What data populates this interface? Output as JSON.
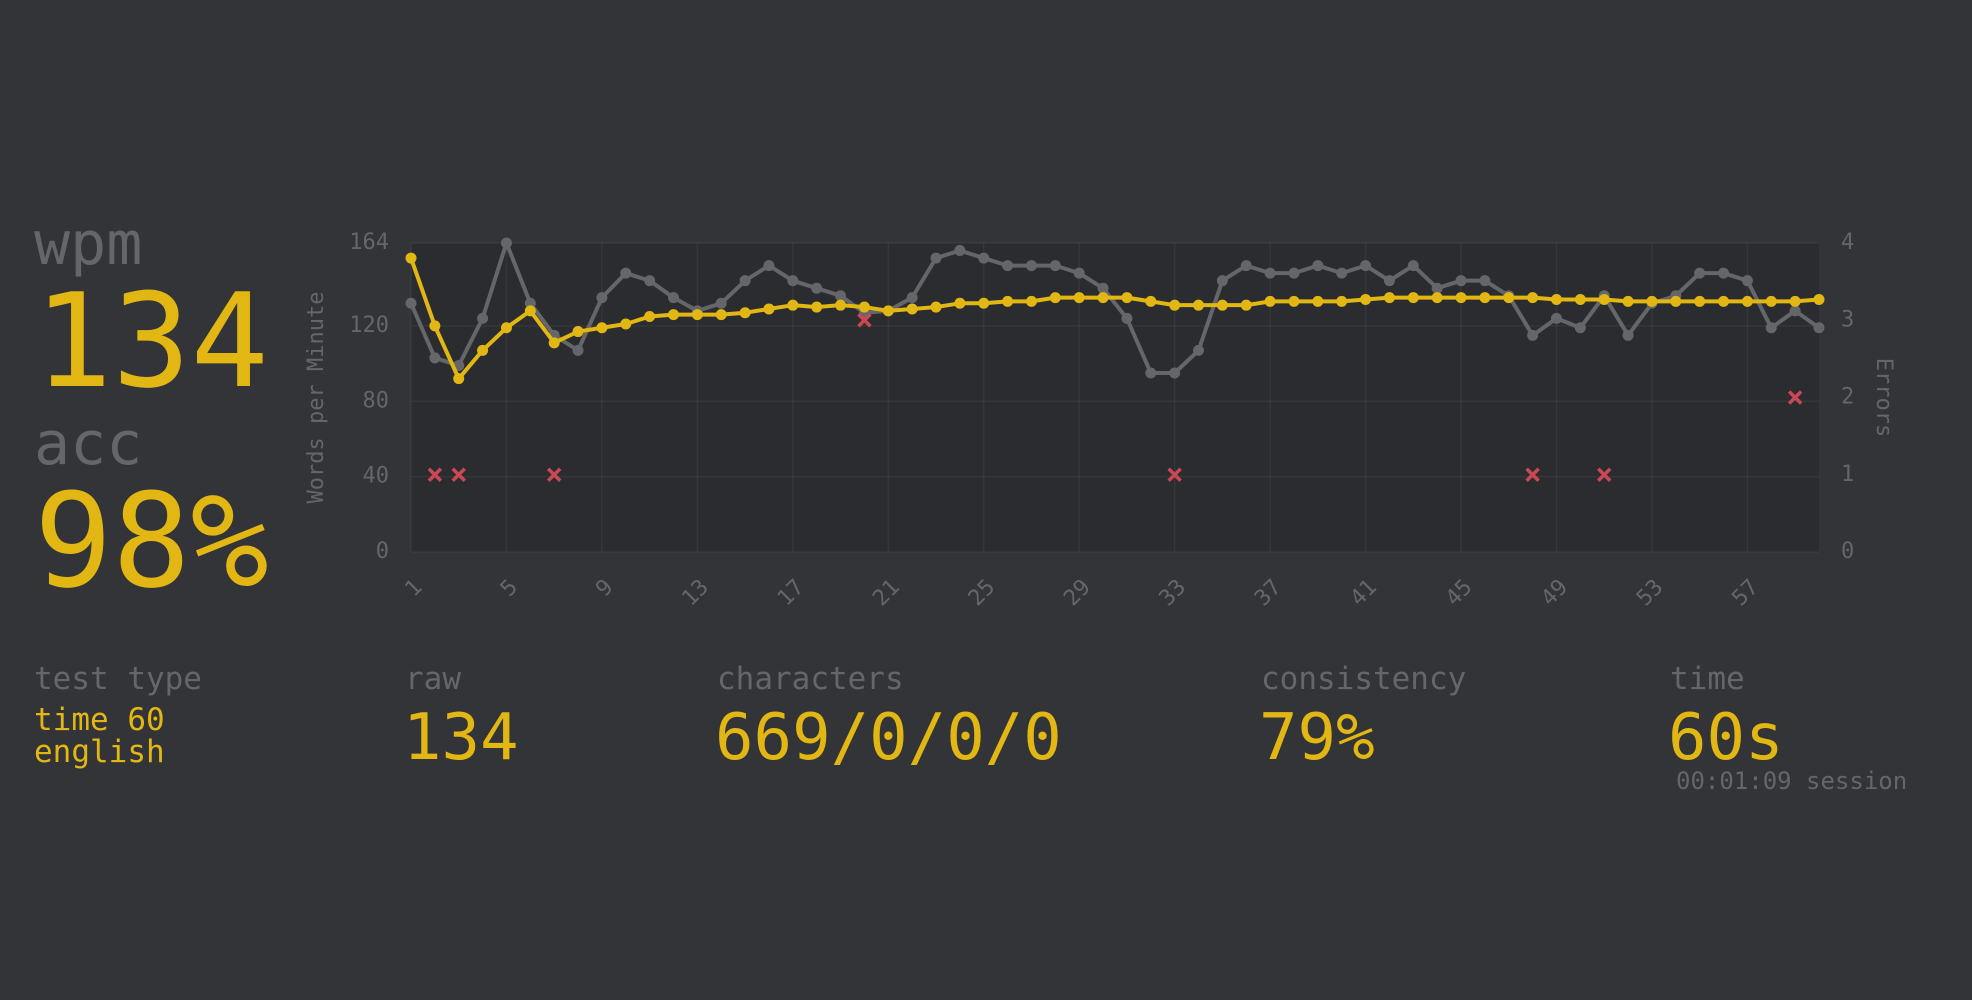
{
  "chart_data": {
    "type": "line",
    "ylabel": "Words per Minute",
    "y2label": "Errors",
    "x": [
      1,
      2,
      3,
      4,
      5,
      6,
      7,
      8,
      9,
      10,
      11,
      12,
      13,
      14,
      15,
      16,
      17,
      18,
      19,
      20,
      21,
      22,
      23,
      24,
      25,
      26,
      27,
      28,
      29,
      30,
      31,
      32,
      33,
      34,
      35,
      36,
      37,
      38,
      39,
      40,
      41,
      42,
      43,
      44,
      45,
      46,
      47,
      48,
      49,
      50,
      51,
      52,
      53,
      54,
      55,
      56,
      57,
      58,
      59,
      60
    ],
    "xlim": [
      1,
      60
    ],
    "xticks": [
      1,
      5,
      9,
      13,
      17,
      21,
      25,
      29,
      33,
      37,
      41,
      45,
      49,
      53,
      57
    ],
    "ylim": [
      0,
      164
    ],
    "yticks": [
      0,
      40,
      80,
      120,
      164
    ],
    "y2lim": [
      0,
      4
    ],
    "y2ticks": [
      0,
      1,
      2,
      3,
      4
    ],
    "grid": true,
    "series": [
      {
        "color": "#646669",
        "values": [
          132,
          103,
          99,
          124,
          164,
          132,
          115,
          107,
          135,
          148,
          144,
          135,
          128,
          132,
          144,
          152,
          144,
          140,
          136,
          127,
          128,
          135,
          156,
          160,
          156,
          152,
          152,
          152,
          148,
          140,
          124,
          95,
          95,
          107,
          144,
          152,
          148,
          148,
          152,
          148,
          152,
          144,
          152,
          140,
          144,
          144,
          136,
          115,
          124,
          119,
          136,
          115,
          132,
          136,
          148,
          148,
          144,
          119,
          128,
          119
        ]
      },
      {
        "color": "#e2b714",
        "values": [
          156,
          120,
          92,
          107,
          119,
          128,
          111,
          117,
          119,
          121,
          125,
          126,
          126,
          126,
          127,
          129,
          131,
          130,
          131,
          130,
          128,
          129,
          130,
          132,
          132,
          133,
          133,
          135,
          135,
          135,
          135,
          133,
          131,
          131,
          131,
          131,
          133,
          133,
          133,
          133,
          134,
          135,
          135,
          135,
          135,
          135,
          135,
          135,
          134,
          134,
          134,
          133,
          133,
          133,
          133,
          133,
          133,
          133,
          133,
          134
        ]
      },
      {
        "color": "#ca4754",
        "axis": "y2",
        "marker": "x",
        "values": [
          null,
          1,
          1,
          null,
          null,
          null,
          1,
          null,
          null,
          null,
          null,
          null,
          null,
          null,
          null,
          null,
          null,
          null,
          null,
          3,
          null,
          null,
          null,
          null,
          null,
          null,
          null,
          null,
          null,
          null,
          null,
          null,
          1,
          null,
          null,
          null,
          null,
          null,
          null,
          null,
          null,
          null,
          null,
          null,
          null,
          null,
          null,
          1,
          null,
          null,
          1,
          null,
          null,
          null,
          null,
          null,
          null,
          null,
          2,
          null
        ]
      }
    ]
  },
  "stats": {
    "wpm": {
      "label": "wpm",
      "value": "134"
    },
    "acc": {
      "label": "acc",
      "value": "98%"
    },
    "test_type": {
      "label": "test type",
      "lines": [
        "time 60",
        "english"
      ]
    },
    "raw": {
      "label": "raw",
      "value": "134"
    },
    "characters": {
      "label": "characters",
      "value": "669/0/0/0"
    },
    "consistency": {
      "label": "consistency",
      "value": "79%"
    },
    "time": {
      "label": "time",
      "value": "60s",
      "note": "00:01:09 session"
    }
  }
}
